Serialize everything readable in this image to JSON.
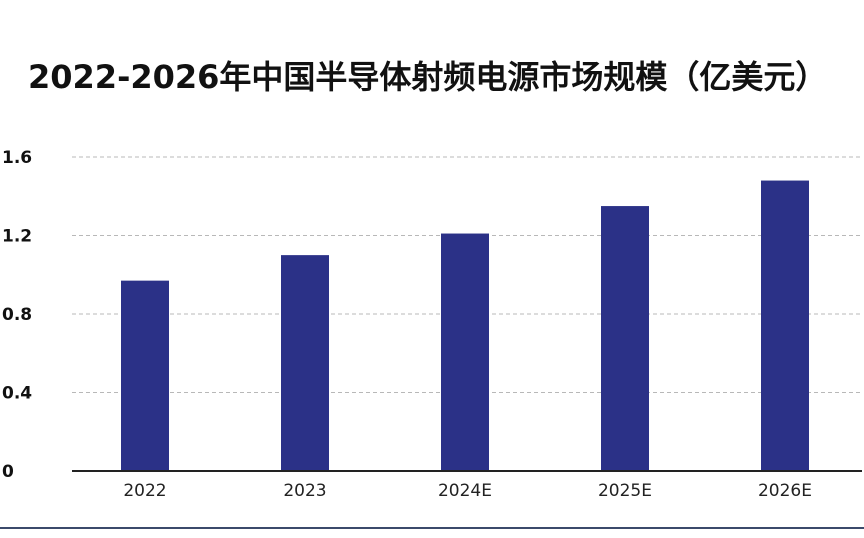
{
  "chart_data": {
    "type": "bar",
    "title": "2022-2026年中国半导体射频电源市场规模（亿美元）",
    "categories": [
      "2022",
      "2023",
      "2024E",
      "2025E",
      "2026E"
    ],
    "values": [
      0.97,
      1.1,
      1.21,
      1.35,
      1.48
    ],
    "yticks": [
      "0",
      "0.4",
      "0.8",
      "1.2",
      "1.6"
    ],
    "ylim": [
      0,
      1.6
    ],
    "xlabel": "",
    "ylabel": "",
    "grid": true,
    "legend": "none",
    "bar_color": "#2b3187"
  }
}
